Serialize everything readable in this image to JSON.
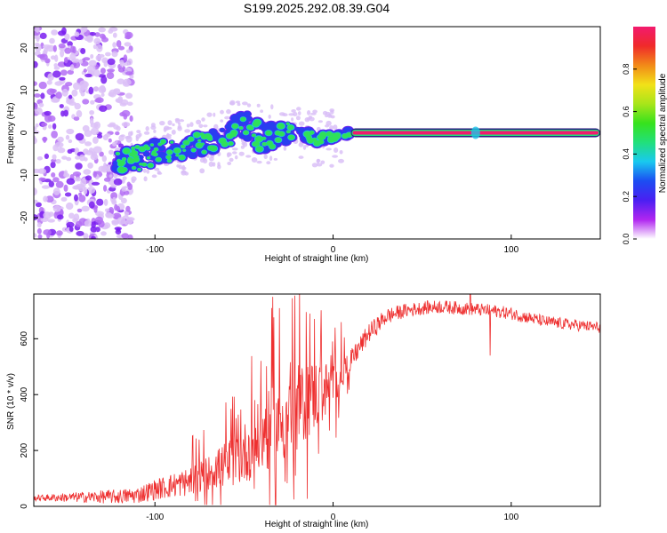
{
  "colors": {
    "snr_line": "#ee3030",
    "frame": "#000000",
    "colorbar_stops": [
      "#ffffff",
      "#b026f0",
      "#4b1ff2",
      "#1c4df2",
      "#19c9ef",
      "#21e07a",
      "#37e21d",
      "#a8e51a",
      "#f2e118",
      "#f28a18",
      "#f02a2a",
      "#f21a6e"
    ]
  },
  "chart_data": [
    {
      "type": "heatmap",
      "title": "S199.2025.292.08.39.G04",
      "xlabel": "Height of straight line (km)",
      "ylabel": "Frequency (Hz)",
      "xlim": [
        -168,
        150
      ],
      "ylim": [
        -25,
        25
      ],
      "xticks": [
        -100,
        0,
        100
      ],
      "yticks": [
        -20,
        -10,
        0,
        10,
        20
      ],
      "colorbar": {
        "label": "Normalized spectral amplitude",
        "range": [
          0,
          1
        ],
        "ticks": [
          "0.0",
          "0.2",
          "0.4",
          "0.6",
          "0.8"
        ]
      },
      "noise_region_x": [
        -168,
        -113
      ],
      "ridge": [
        {
          "x": -120,
          "f": -7,
          "w": 3.5
        },
        {
          "x": -100,
          "f": -5,
          "w": 3.5
        },
        {
          "x": -80,
          "f": -3,
          "w": 3.0
        },
        {
          "x": -62,
          "f": -1.5,
          "w": 3.0
        },
        {
          "x": -50,
          "f": 2,
          "w": 4.0
        },
        {
          "x": -40,
          "f": -1,
          "w": 4.0
        },
        {
          "x": -20,
          "f": 0.5,
          "w": 2.0
        },
        {
          "x": -10,
          "f": -1.5,
          "w": 1.5
        },
        {
          "x": 0,
          "f": -0.8,
          "w": 1.2
        },
        {
          "x": 10,
          "f": 0,
          "w": 0.8
        },
        {
          "x": 150,
          "f": 0,
          "w": 0.8
        }
      ],
      "steady_tone": {
        "x_start": 10,
        "x_end": 150,
        "frequency": 0
      },
      "bump_x": 80
    },
    {
      "type": "line",
      "title": "",
      "xlabel": "Height of straight line (km)",
      "ylabel": "SNR (10 * v/v)",
      "xlim": [
        -168,
        150
      ],
      "ylim": [
        0,
        760
      ],
      "xticks": [
        -100,
        0,
        100
      ],
      "yticks": [
        0,
        200,
        400,
        600
      ],
      "series": [
        {
          "name": "SNR",
          "envelope_x": [
            -168,
            -120,
            -110,
            -100,
            -80,
            -60,
            -50,
            -40,
            -30,
            -20,
            -10,
            0,
            10,
            20,
            30,
            40,
            50,
            60,
            70,
            80,
            90,
            100,
            120,
            150
          ],
          "envelope_y": [
            30,
            35,
            40,
            60,
            90,
            150,
            190,
            250,
            300,
            350,
            400,
            430,
            520,
            620,
            680,
            700,
            710,
            715,
            710,
            705,
            700,
            690,
            660,
            640
          ],
          "noise_amp_x": [
            -168,
            -110,
            -70,
            -50,
            -30,
            -10,
            10,
            40,
            150
          ],
          "noise_amp_y": [
            10,
            30,
            60,
            110,
            160,
            130,
            40,
            25,
            20
          ],
          "spikes": [
            {
              "x": -34,
              "y": 750
            },
            {
              "x": -23,
              "y": 745
            },
            {
              "x": -13,
              "y": 690
            },
            {
              "x": -7,
              "y": 610
            },
            {
              "x": 77,
              "y": 760
            },
            {
              "x": 88,
              "y": 540
            }
          ]
        }
      ]
    }
  ]
}
